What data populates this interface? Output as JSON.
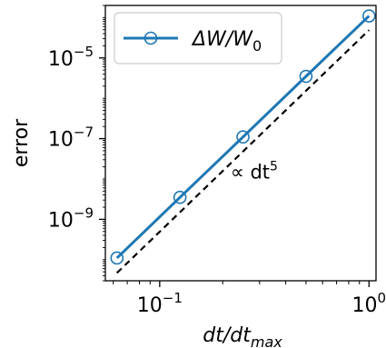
{
  "chart_data": {
    "type": "line",
    "xscale": "log",
    "yscale": "log",
    "xlim": [
      0.055,
      1.08
    ],
    "ylim": [
      3e-11,
      0.0002
    ],
    "grid": false,
    "legend_position": "top-left",
    "xlabel": "dt/dt_max",
    "ylabel": "error",
    "xticks": [
      {
        "value": 0.1,
        "base": "10",
        "exp": "−1"
      },
      {
        "value": 1.0,
        "base": "10",
        "exp": "0"
      }
    ],
    "yticks": [
      {
        "value": 1e-09,
        "base": "10",
        "exp": "−9"
      },
      {
        "value": 1e-07,
        "base": "10",
        "exp": "−7"
      },
      {
        "value": 1e-05,
        "base": "10",
        "exp": "−5"
      }
    ],
    "series": [
      {
        "name": "ΔW/W0",
        "style": "solid",
        "marker": "open-circle",
        "color": "#1f77b4",
        "x": [
          0.0625,
          0.125,
          0.25,
          0.5,
          1.0
        ],
        "y": [
          1.1e-10,
          3.5e-09,
          1.1e-07,
          3.5e-06,
          0.00011
        ]
      },
      {
        "name": "",
        "style": "dashed",
        "marker": "none",
        "color": "#000000",
        "x": [
          0.0625,
          1.0
        ],
        "y": [
          4.7e-11,
          4.9e-05
        ]
      }
    ],
    "annotations": [
      {
        "text": "∝ dt",
        "sup": "5",
        "x": 0.3,
        "y": 1.2e-08
      }
    ],
    "legend": [
      {
        "series": 0,
        "label_main": "ΔW/W",
        "label_sub": "0"
      }
    ]
  }
}
